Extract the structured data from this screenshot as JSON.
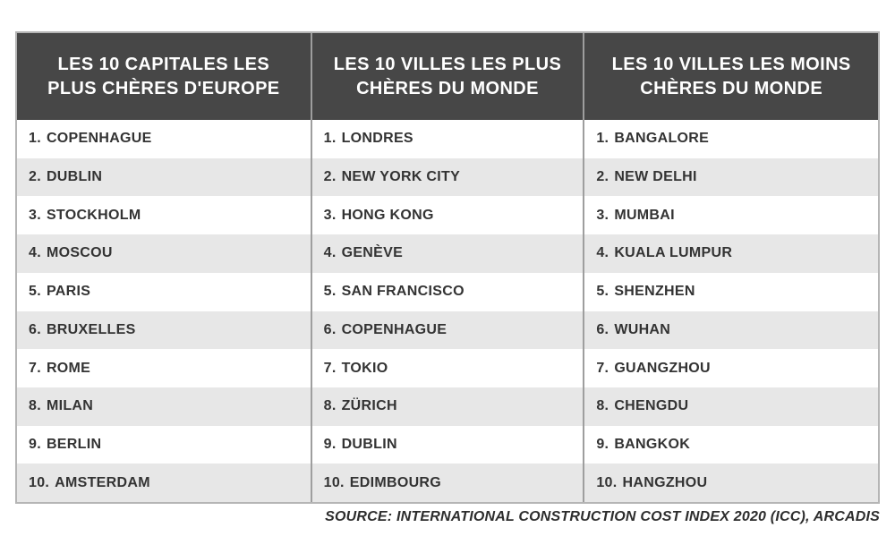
{
  "chart_data": {
    "type": "table",
    "ranks": [
      "1.",
      "2.",
      "3.",
      "4.",
      "5.",
      "6.",
      "7.",
      "8.",
      "9.",
      "10."
    ],
    "columns": [
      {
        "header": "LES 10 CAPITALES LES PLUS CHÈRES D'EUROPE",
        "header_lines": [
          "LES 10 CAPITALES LES",
          "PLUS CHÈRES D'EUROPE"
        ],
        "cities": [
          "COPENHAGUE",
          "DUBLIN",
          "STOCKHOLM",
          "MOSCOU",
          "PARIS",
          "BRUXELLES",
          "ROME",
          "MILAN",
          "BERLIN",
          "AMSTERDAM"
        ]
      },
      {
        "header": "LES 10 VILLES LES PLUS CHÈRES DU MONDE",
        "header_lines": [
          "LES 10 VILLES LES PLUS",
          "CHÈRES DU MONDE"
        ],
        "cities": [
          "LONDRES",
          "NEW YORK CITY",
          "HONG KONG",
          "GENÈVE",
          "SAN FRANCISCO",
          "COPENHAGUE",
          "TOKIO",
          "ZÜRICH",
          "DUBLIN",
          "EDIMBOURG"
        ]
      },
      {
        "header": "LES 10 VILLES LES MOINS CHÈRES DU MONDE",
        "header_lines": [
          "LES 10 VILLES LES MOINS",
          "CHÈRES DU MONDE"
        ],
        "cities": [
          "BANGALORE",
          "NEW DELHI",
          "MUMBAI",
          "KUALA LUMPUR",
          "SHENZHEN",
          "WUHAN",
          "GUANGZHOU",
          "CHENGDU",
          "BANGKOK",
          "HANGZHOU"
        ]
      }
    ],
    "source": "SOURCE: INTERNATIONAL CONSTRUCTION COST INDEX 2020 (ICC), ARCADIS",
    "layout": {
      "grid": "off",
      "legend": "none"
    }
  },
  "colors": {
    "header_bg": "#474747",
    "header_text": "#ffffff",
    "row_bg": "#ffffff",
    "row_alt_bg": "#e7e7e7",
    "body_text": "#333333",
    "outer_border": "#b5b5b5",
    "column_separator": "#9e9e9e",
    "source_text": "#2d2d2d"
  }
}
